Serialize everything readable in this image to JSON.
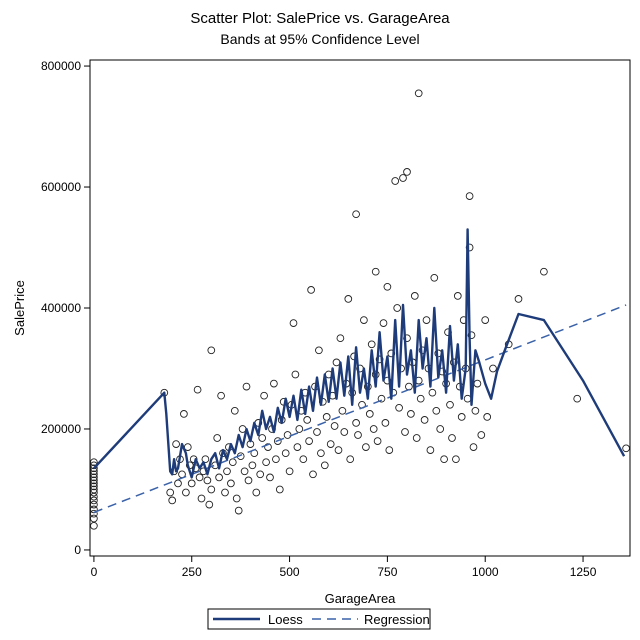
{
  "chart_data": {
    "type": "scatter",
    "title": "Scatter Plot: SalePrice vs. GarageArea",
    "subtitle": "Bands at 95% Confidence Level",
    "xlabel": "GarageArea",
    "ylabel": "SalePrice",
    "xlim": [
      -10,
      1370
    ],
    "ylim": [
      -10000,
      810000
    ],
    "xticks": [
      0,
      250,
      500,
      750,
      1000,
      1250
    ],
    "yticks": [
      0,
      200000,
      400000,
      600000,
      800000
    ],
    "xtick_labels": [
      "0",
      "250",
      "500",
      "750",
      "1000",
      "1250"
    ],
    "ytick_labels": [
      "0",
      "200000",
      "400000",
      "600000",
      "800000"
    ],
    "grid": false,
    "legend_position": "bottom-center",
    "colors": {
      "loess": "#1f3c7a",
      "regression": "#3a62a8",
      "points": "#222222",
      "frame": "#000000"
    },
    "legend": [
      {
        "label": "Loess",
        "style": "solid"
      },
      {
        "label": "Regression",
        "style": "dashed"
      }
    ],
    "points": [
      [
        0,
        40000
      ],
      [
        0,
        52000
      ],
      [
        0,
        60000
      ],
      [
        0,
        67000
      ],
      [
        0,
        75000
      ],
      [
        0,
        82000
      ],
      [
        0,
        88000
      ],
      [
        0,
        95000
      ],
      [
        0,
        100000
      ],
      [
        0,
        105000
      ],
      [
        0,
        110000
      ],
      [
        0,
        115000
      ],
      [
        0,
        120000
      ],
      [
        0,
        125000
      ],
      [
        0,
        130000
      ],
      [
        0,
        135000
      ],
      [
        0,
        140000
      ],
      [
        0,
        145000
      ],
      [
        180,
        260000
      ],
      [
        195,
        95000
      ],
      [
        200,
        82000
      ],
      [
        205,
        130000
      ],
      [
        210,
        175000
      ],
      [
        215,
        110000
      ],
      [
        220,
        150000
      ],
      [
        225,
        125000
      ],
      [
        230,
        225000
      ],
      [
        235,
        95000
      ],
      [
        240,
        170000
      ],
      [
        245,
        140000
      ],
      [
        250,
        110000
      ],
      [
        255,
        150000
      ],
      [
        260,
        135000
      ],
      [
        265,
        265000
      ],
      [
        270,
        120000
      ],
      [
        275,
        85000
      ],
      [
        280,
        130000
      ],
      [
        285,
        150000
      ],
      [
        290,
        115000
      ],
      [
        295,
        75000
      ],
      [
        300,
        330000
      ],
      [
        300,
        100000
      ],
      [
        310,
        140000
      ],
      [
        315,
        185000
      ],
      [
        320,
        120000
      ],
      [
        325,
        255000
      ],
      [
        330,
        160000
      ],
      [
        335,
        95000
      ],
      [
        340,
        130000
      ],
      [
        345,
        170000
      ],
      [
        350,
        110000
      ],
      [
        355,
        145000
      ],
      [
        360,
        230000
      ],
      [
        365,
        85000
      ],
      [
        370,
        65000
      ],
      [
        375,
        155000
      ],
      [
        380,
        200000
      ],
      [
        385,
        130000
      ],
      [
        390,
        270000
      ],
      [
        395,
        115000
      ],
      [
        400,
        175000
      ],
      [
        405,
        140000
      ],
      [
        410,
        160000
      ],
      [
        415,
        95000
      ],
      [
        420,
        210000
      ],
      [
        425,
        125000
      ],
      [
        430,
        185000
      ],
      [
        435,
        255000
      ],
      [
        440,
        145000
      ],
      [
        445,
        170000
      ],
      [
        450,
        120000
      ],
      [
        455,
        200000
      ],
      [
        460,
        275000
      ],
      [
        465,
        150000
      ],
      [
        470,
        180000
      ],
      [
        475,
        100000
      ],
      [
        480,
        215000
      ],
      [
        485,
        245000
      ],
      [
        490,
        160000
      ],
      [
        495,
        190000
      ],
      [
        500,
        130000
      ],
      [
        505,
        240000
      ],
      [
        510,
        375000
      ],
      [
        515,
        290000
      ],
      [
        520,
        170000
      ],
      [
        525,
        200000
      ],
      [
        530,
        230000
      ],
      [
        535,
        150000
      ],
      [
        540,
        260000
      ],
      [
        545,
        215000
      ],
      [
        550,
        180000
      ],
      [
        555,
        430000
      ],
      [
        560,
        125000
      ],
      [
        565,
        270000
      ],
      [
        570,
        195000
      ],
      [
        575,
        330000
      ],
      [
        580,
        160000
      ],
      [
        585,
        245000
      ],
      [
        590,
        140000
      ],
      [
        595,
        220000
      ],
      [
        600,
        290000
      ],
      [
        605,
        175000
      ],
      [
        610,
        255000
      ],
      [
        615,
        205000
      ],
      [
        620,
        310000
      ],
      [
        625,
        165000
      ],
      [
        630,
        350000
      ],
      [
        635,
        230000
      ],
      [
        640,
        195000
      ],
      [
        645,
        275000
      ],
      [
        650,
        415000
      ],
      [
        655,
        150000
      ],
      [
        660,
        260000
      ],
      [
        665,
        320000
      ],
      [
        670,
        555000
      ],
      [
        670,
        210000
      ],
      [
        675,
        190000
      ],
      [
        680,
        300000
      ],
      [
        685,
        240000
      ],
      [
        690,
        380000
      ],
      [
        695,
        170000
      ],
      [
        700,
        270000
      ],
      [
        705,
        225000
      ],
      [
        710,
        340000
      ],
      [
        715,
        200000
      ],
      [
        720,
        460000
      ],
      [
        720,
        290000
      ],
      [
        725,
        180000
      ],
      [
        730,
        315000
      ],
      [
        735,
        250000
      ],
      [
        740,
        375000
      ],
      [
        745,
        210000
      ],
      [
        750,
        435000
      ],
      [
        750,
        280000
      ],
      [
        755,
        165000
      ],
      [
        760,
        325000
      ],
      [
        765,
        260000
      ],
      [
        770,
        610000
      ],
      [
        775,
        400000
      ],
      [
        780,
        235000
      ],
      [
        785,
        300000
      ],
      [
        790,
        615000
      ],
      [
        795,
        195000
      ],
      [
        800,
        625000
      ],
      [
        800,
        350000
      ],
      [
        805,
        270000
      ],
      [
        810,
        225000
      ],
      [
        815,
        310000
      ],
      [
        820,
        420000
      ],
      [
        825,
        185000
      ],
      [
        830,
        755000
      ],
      [
        830,
        280000
      ],
      [
        835,
        250000
      ],
      [
        840,
        330000
      ],
      [
        845,
        215000
      ],
      [
        850,
        380000
      ],
      [
        855,
        300000
      ],
      [
        860,
        165000
      ],
      [
        865,
        260000
      ],
      [
        870,
        450000
      ],
      [
        875,
        230000
      ],
      [
        880,
        325000
      ],
      [
        885,
        200000
      ],
      [
        890,
        295000
      ],
      [
        895,
        150000
      ],
      [
        900,
        275000
      ],
      [
        905,
        360000
      ],
      [
        910,
        240000
      ],
      [
        915,
        185000
      ],
      [
        920,
        310000
      ],
      [
        925,
        150000
      ],
      [
        930,
        420000
      ],
      [
        935,
        270000
      ],
      [
        940,
        220000
      ],
      [
        945,
        380000
      ],
      [
        950,
        300000
      ],
      [
        955,
        250000
      ],
      [
        960,
        585000
      ],
      [
        960,
        500000
      ],
      [
        965,
        355000
      ],
      [
        970,
        170000
      ],
      [
        975,
        230000
      ],
      [
        980,
        275000
      ],
      [
        990,
        190000
      ],
      [
        1000,
        380000
      ],
      [
        1005,
        220000
      ],
      [
        1020,
        300000
      ],
      [
        1060,
        340000
      ],
      [
        1085,
        415000
      ],
      [
        1150,
        460000
      ],
      [
        1235,
        250000
      ],
      [
        1360,
        168000
      ]
    ],
    "loess": [
      [
        0,
        135000
      ],
      [
        180,
        260000
      ],
      [
        185,
        225000
      ],
      [
        195,
        130000
      ],
      [
        200,
        125000
      ],
      [
        205,
        150000
      ],
      [
        210,
        130000
      ],
      [
        215,
        135000
      ],
      [
        225,
        175000
      ],
      [
        235,
        160000
      ],
      [
        240,
        140000
      ],
      [
        250,
        120000
      ],
      [
        260,
        150000
      ],
      [
        270,
        135000
      ],
      [
        280,
        145000
      ],
      [
        290,
        125000
      ],
      [
        300,
        150000
      ],
      [
        310,
        160000
      ],
      [
        320,
        135000
      ],
      [
        330,
        165000
      ],
      [
        340,
        150000
      ],
      [
        350,
        175000
      ],
      [
        360,
        160000
      ],
      [
        370,
        190000
      ],
      [
        380,
        170000
      ],
      [
        390,
        200000
      ],
      [
        400,
        180000
      ],
      [
        410,
        210000
      ],
      [
        420,
        190000
      ],
      [
        430,
        230000
      ],
      [
        440,
        200000
      ],
      [
        450,
        220000
      ],
      [
        460,
        195000
      ],
      [
        470,
        235000
      ],
      [
        480,
        210000
      ],
      [
        490,
        250000
      ],
      [
        500,
        220000
      ],
      [
        510,
        255000
      ],
      [
        520,
        215000
      ],
      [
        530,
        265000
      ],
      [
        540,
        225000
      ],
      [
        550,
        270000
      ],
      [
        560,
        230000
      ],
      [
        570,
        285000
      ],
      [
        580,
        240000
      ],
      [
        590,
        290000
      ],
      [
        600,
        245000
      ],
      [
        610,
        300000
      ],
      [
        620,
        250000
      ],
      [
        630,
        310000
      ],
      [
        640,
        255000
      ],
      [
        650,
        320000
      ],
      [
        660,
        240000
      ],
      [
        670,
        335000
      ],
      [
        680,
        260000
      ],
      [
        690,
        300000
      ],
      [
        700,
        250000
      ],
      [
        710,
        330000
      ],
      [
        720,
        270000
      ],
      [
        730,
        360000
      ],
      [
        740,
        280000
      ],
      [
        750,
        320000
      ],
      [
        760,
        250000
      ],
      [
        770,
        380000
      ],
      [
        780,
        270000
      ],
      [
        790,
        405000
      ],
      [
        800,
        290000
      ],
      [
        810,
        330000
      ],
      [
        820,
        260000
      ],
      [
        830,
        380000
      ],
      [
        840,
        300000
      ],
      [
        850,
        350000
      ],
      [
        860,
        270000
      ],
      [
        870,
        400000
      ],
      [
        880,
        285000
      ],
      [
        890,
        330000
      ],
      [
        900,
        260000
      ],
      [
        910,
        370000
      ],
      [
        920,
        280000
      ],
      [
        930,
        340000
      ],
      [
        940,
        250000
      ],
      [
        950,
        300000
      ],
      [
        955,
        530000
      ],
      [
        960,
        350000
      ],
      [
        965,
        240000
      ],
      [
        975,
        330000
      ],
      [
        985,
        310000
      ],
      [
        1000,
        275000
      ],
      [
        1015,
        250000
      ],
      [
        1030,
        295000
      ],
      [
        1050,
        330000
      ],
      [
        1085,
        390000
      ],
      [
        1150,
        380000
      ],
      [
        1250,
        280000
      ],
      [
        1355,
        155000
      ]
    ],
    "regression": [
      [
        0,
        62000
      ],
      [
        1360,
        405000
      ]
    ]
  }
}
